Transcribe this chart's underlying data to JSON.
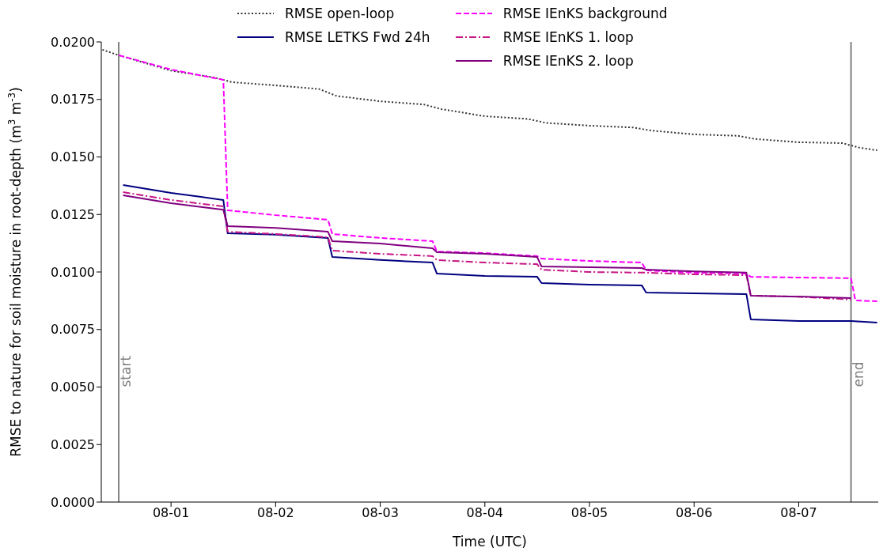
{
  "chart_data": {
    "type": "line",
    "xlabel": "Time (UTC)",
    "ylabel": "RMSE to nature for soil moisture in root-depth (m$^{3}$ m$^{-3}$)",
    "xlim": [
      "--07-31T08:00",
      "--08-07T18:15"
    ],
    "xticks": [
      {
        "value": "--08-01",
        "label": "08-01"
      },
      {
        "value": "--08-02",
        "label": "08-02"
      },
      {
        "value": "--08-03",
        "label": "08-03"
      },
      {
        "value": "--08-04",
        "label": "08-04"
      },
      {
        "value": "--08-05",
        "label": "08-05"
      },
      {
        "value": "--08-06",
        "label": "08-06"
      },
      {
        "value": "--08-07",
        "label": "08-07"
      }
    ],
    "ylim": [
      0,
      0.02
    ],
    "yticks": [
      {
        "value": 0,
        "label": "0.0000"
      },
      {
        "value": 0.0025,
        "label": "0.0025"
      },
      {
        "value": 0.005,
        "label": "0.0050"
      },
      {
        "value": 0.0075,
        "label": "0.0075"
      },
      {
        "value": 0.01,
        "label": "0.0100"
      },
      {
        "value": 0.0125,
        "label": "0.0125"
      },
      {
        "value": 0.015,
        "label": "0.0150"
      },
      {
        "value": 0.0175,
        "label": "0.0175"
      },
      {
        "value": 0.02,
        "label": "0.0200"
      }
    ],
    "legend": "top",
    "marker": "none",
    "ref_lines": [
      {
        "axis": "x",
        "value": "--07-31T12:00",
        "label": "start",
        "color": "#808080"
      },
      {
        "axis": "x",
        "value": "--08-07T12:00",
        "label": "end",
        "color": "#808080"
      }
    ],
    "series": [
      {
        "name": "RMSE open-loop",
        "color": "#333333",
        "line_style": "dotted",
        "x": [
          "--07-31T08:15",
          "--07-31T12:00",
          "--08-01T00:00",
          "--08-01T10:00",
          "--08-01T14:00",
          "--08-02T00:00",
          "--08-02T10:00",
          "--08-02T14:00",
          "--08-03T00:00",
          "--08-03T10:00",
          "--08-03T14:00",
          "--08-04T00:00",
          "--08-04T10:00",
          "--08-04T14:00",
          "--08-05T00:00",
          "--08-05T10:00",
          "--08-05T14:00",
          "--08-06T00:00",
          "--08-06T10:00",
          "--08-06T14:00",
          "--08-07T00:00",
          "--08-07T10:00",
          "--08-07T14:00",
          "--08-07T18:00"
        ],
        "values": [
          0.01966,
          0.01942,
          0.01875,
          0.01845,
          0.01825,
          0.01811,
          0.01795,
          0.01765,
          0.01742,
          0.01728,
          0.01708,
          0.01677,
          0.01665,
          0.01648,
          0.01636,
          0.01628,
          0.01615,
          0.01598,
          0.01592,
          0.01578,
          0.01564,
          0.0156,
          0.0154,
          0.01529
        ]
      },
      {
        "name": "RMSE LETKS Fwd 24h",
        "color": "#000080",
        "line_style": "solid",
        "x": [
          "--07-31T13:00",
          "--08-01T00:00",
          "--08-01T12:00",
          "--08-01T13:00",
          "--08-02T00:00",
          "--08-02T12:00",
          "--08-02T13:00",
          "--08-03T00:00",
          "--08-03T12:00",
          "--08-03T13:00",
          "--08-04T00:00",
          "--08-04T12:00",
          "--08-04T13:00",
          "--08-05T00:00",
          "--08-05T12:00",
          "--08-05T13:00",
          "--08-06T00:00",
          "--08-06T12:00",
          "--08-06T13:00",
          "--08-07T00:00",
          "--08-07T12:00",
          "--08-07T18:00"
        ],
        "values": [
          0.01378,
          0.01344,
          0.01313,
          0.01168,
          0.01162,
          0.01148,
          0.01065,
          0.01052,
          0.01041,
          0.00993,
          0.00983,
          0.00979,
          0.00952,
          0.00945,
          0.00942,
          0.00911,
          0.00907,
          0.00904,
          0.00794,
          0.00787,
          0.00787,
          0.0078
        ]
      },
      {
        "name": "RMSE IEnKS background",
        "color": "#ff00ff",
        "line_style": "dashed",
        "x": [
          "--07-31T12:00",
          "--08-01T00:00",
          "--08-01T12:00",
          "--08-01T13:00",
          "--08-02T00:00",
          "--08-02T12:00",
          "--08-02T13:00",
          "--08-03T00:00",
          "--08-03T12:00",
          "--08-03T13:00",
          "--08-04T00:00",
          "--08-04T12:00",
          "--08-04T13:00",
          "--08-05T00:00",
          "--08-05T12:00",
          "--08-05T13:00",
          "--08-06T00:00",
          "--08-06T12:00",
          "--08-06T13:00",
          "--08-07T00:00",
          "--08-07T12:00",
          "--08-07T13:00",
          "--08-07T18:00"
        ],
        "values": [
          0.01942,
          0.0188,
          0.01835,
          0.01268,
          0.01247,
          0.01227,
          0.01165,
          0.01148,
          0.01134,
          0.01089,
          0.01082,
          0.01069,
          0.01058,
          0.01048,
          0.01041,
          0.01007,
          0.00997,
          0.00993,
          0.00979,
          0.00976,
          0.00973,
          0.00876,
          0.00873
        ]
      },
      {
        "name": "RMSE IEnKS 1. loop",
        "color": "#c71585",
        "line_style": "dashdot",
        "x": [
          "--07-31T13:00",
          "--08-01T00:00",
          "--08-01T12:00",
          "--08-01T13:00",
          "--08-02T00:00",
          "--08-02T12:00",
          "--08-02T13:00",
          "--08-03T00:00",
          "--08-03T12:00",
          "--08-03T13:00",
          "--08-04T00:00",
          "--08-04T12:00",
          "--08-04T13:00",
          "--08-05T00:00",
          "--08-05T12:00",
          "--08-05T13:00",
          "--08-06T00:00",
          "--08-06T12:00",
          "--08-06T13:00",
          "--08-07T00:00",
          "--08-07T12:00"
        ],
        "values": [
          0.01347,
          0.01313,
          0.01285,
          0.01175,
          0.01165,
          0.01151,
          0.01093,
          0.01079,
          0.01069,
          0.01052,
          0.01041,
          0.01034,
          0.0101,
          0.01,
          0.00997,
          0.00997,
          0.0099,
          0.00986,
          0.00897,
          0.00893,
          0.0088
        ]
      },
      {
        "name": "RMSE IEnKS 2. loop",
        "color": "#800080",
        "line_style": "solid",
        "x": [
          "--07-31T13:00",
          "--08-01T00:00",
          "--08-01T12:00",
          "--08-01T13:00",
          "--08-02T00:00",
          "--08-02T12:00",
          "--08-02T13:00",
          "--08-03T00:00",
          "--08-03T12:00",
          "--08-03T13:00",
          "--08-04T00:00",
          "--08-04T12:00",
          "--08-04T13:00",
          "--08-05T00:00",
          "--08-05T12:00",
          "--08-05T13:00",
          "--08-06T00:00",
          "--08-06T12:00",
          "--08-06T13:00",
          "--08-07T00:00",
          "--08-07T12:00"
        ],
        "values": [
          0.01333,
          0.01299,
          0.01271,
          0.01199,
          0.01192,
          0.01175,
          0.01134,
          0.01124,
          0.01103,
          0.01086,
          0.01079,
          0.01065,
          0.01024,
          0.01021,
          0.01017,
          0.0101,
          0.01003,
          0.00997,
          0.00897,
          0.00893,
          0.00887
        ]
      }
    ]
  }
}
